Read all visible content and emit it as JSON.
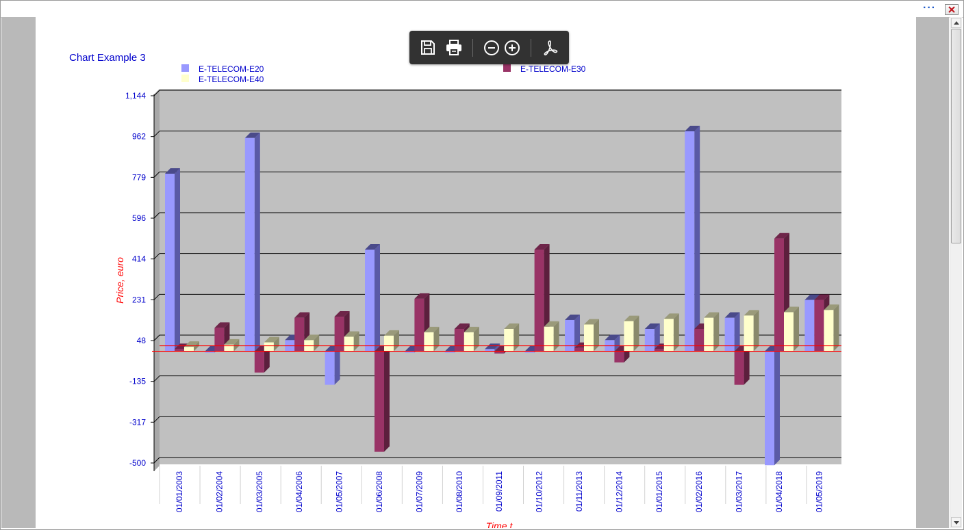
{
  "window": {
    "menu_icon": "more-horizontal-icon",
    "close_icon": "close-icon"
  },
  "toolbar": {
    "icons": [
      "save-icon",
      "print-icon",
      "zoom-out-icon",
      "zoom-in-icon",
      "pdf-icon"
    ]
  },
  "chart_data": {
    "type": "bar",
    "title": "Chart Example 3",
    "xlabel": "Time t",
    "ylabel": "Price, euro",
    "categories": [
      "01/01/2003",
      "01/02/2004",
      "01/03/2005",
      "01/04/2006",
      "01/05/2007",
      "01/06/2008",
      "01/07/2009",
      "01/08/2010",
      "01/09/2011",
      "01/10/2012",
      "01/11/2013",
      "01/12/2014",
      "01/01/2015",
      "01/02/2016",
      "01/03/2017",
      "01/04/2018",
      "01/05/2019"
    ],
    "series": [
      {
        "name": "E-TELECOM-E20",
        "color": "#9999ff",
        "side": "#5a5aa6",
        "top": "#4a4a8a",
        "values": [
          795,
          0,
          955,
          50,
          -150,
          455,
          0,
          0,
          10,
          0,
          140,
          50,
          100,
          985,
          150,
          -510,
          230
        ]
      },
      {
        "name": "E-TELECOM-E30",
        "color": "#993366",
        "side": "#5c1f3d",
        "top": "#6e2549",
        "values": [
          10,
          105,
          -95,
          150,
          155,
          -450,
          235,
          100,
          -10,
          455,
          15,
          -50,
          10,
          100,
          -150,
          505,
          230
        ]
      },
      {
        "name": "E-TELECOM-E40",
        "color": "#ffffcc",
        "side": "#8a8a6c",
        "top": "#9a9a7a",
        "values": [
          20,
          30,
          40,
          50,
          65,
          70,
          85,
          85,
          100,
          110,
          120,
          135,
          145,
          150,
          160,
          175,
          185
        ]
      }
    ],
    "yticks": [
      "1,144",
      "962",
      "779",
      "596",
      "414",
      "231",
      "48",
      "-135",
      "-317",
      "-500"
    ],
    "ylim": [
      -500,
      1144
    ],
    "baseline": 0,
    "legend_position": "top",
    "grid": true,
    "colors": {
      "plot_bg": "#c0c0c0",
      "label": "#0000cc",
      "axis_title": "#ff0000",
      "baseline": "#ff0000"
    }
  }
}
